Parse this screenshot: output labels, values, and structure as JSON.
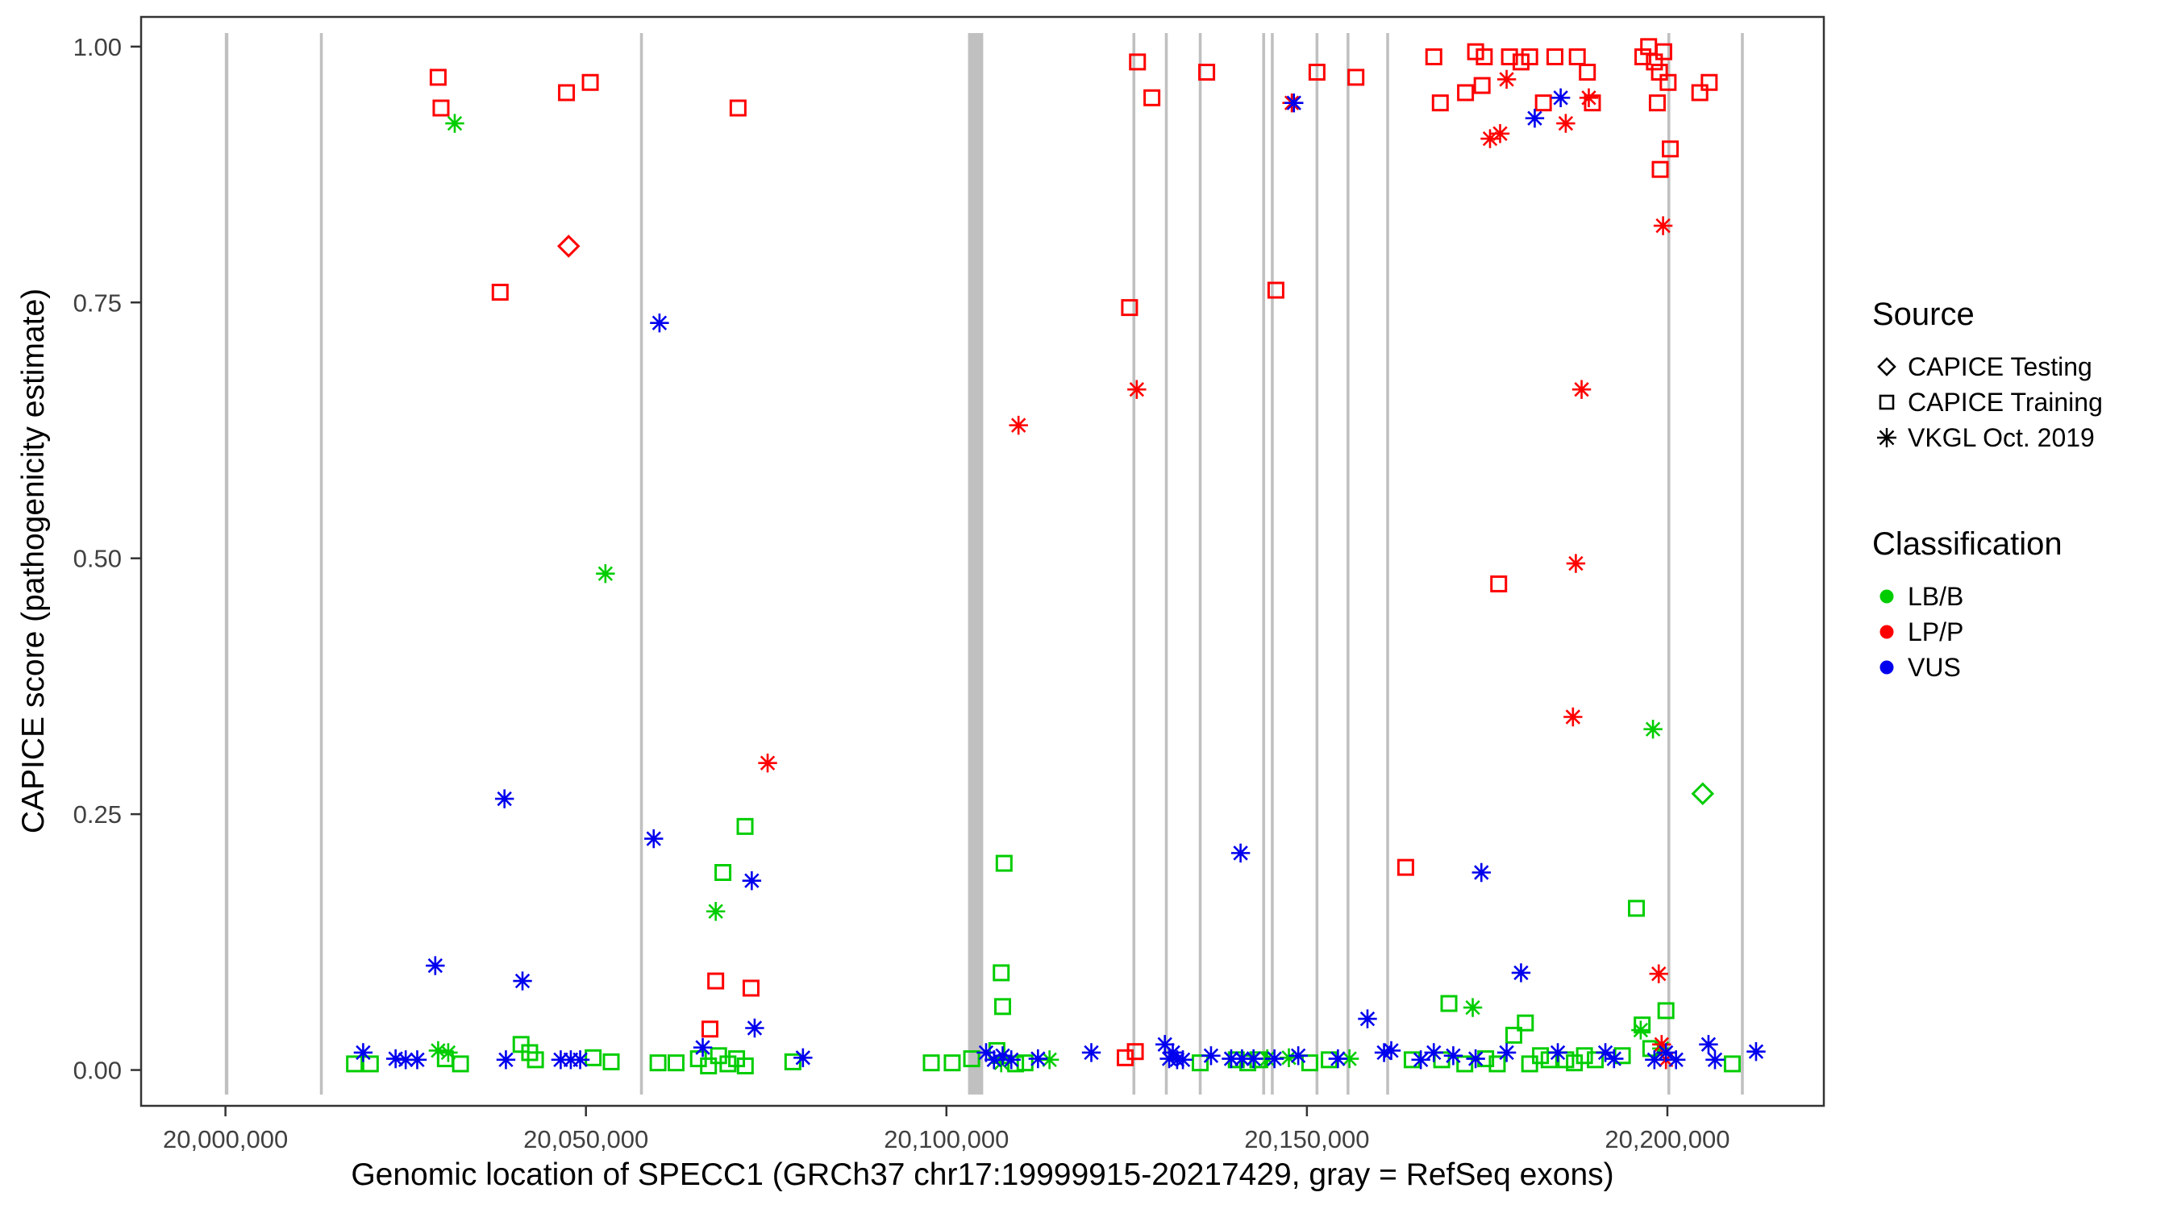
{
  "legend": {
    "source": {
      "title": "Source",
      "items": [
        {
          "label": "CAPICE Testing",
          "shape": "diamond"
        },
        {
          "label": "CAPICE Training",
          "shape": "square"
        },
        {
          "label": "VKGL Oct. 2019",
          "shape": "asterisk"
        }
      ]
    },
    "classification": {
      "title": "Classification",
      "items": [
        {
          "label": "LB/B",
          "color": "#00CD00"
        },
        {
          "label": "LP/P",
          "color": "#FF0000"
        },
        {
          "label": "VUS",
          "color": "#0000EE"
        }
      ]
    }
  },
  "chart_data": {
    "type": "scatter",
    "title": "",
    "xlabel": "Genomic location of SPECC1 (GRCh37 chr17:19999915-20217429, gray = RefSeq exons)",
    "ylabel": "CAPICE score (pathogenicity estimate)",
    "xlim": [
      19988300,
      20221700
    ],
    "ylim": [
      -0.035,
      1.029
    ],
    "x_ticks": {
      "values": [
        20000000,
        20050000,
        20100000,
        20150000,
        20200000
      ],
      "labels": [
        "20,000,000",
        "20,050,000",
        "20,100,000",
        "20,150,000",
        "20,200,000"
      ]
    },
    "y_ticks": {
      "values": [
        0.0,
        0.25,
        0.5,
        0.75,
        1.0
      ],
      "labels": [
        "0.00",
        "0.25",
        "0.50",
        "0.75",
        "1.00"
      ]
    },
    "grid": false,
    "legend_position": "right",
    "exon_color": "#C0C0C0",
    "exons": [
      [
        19999915,
        20000400
      ],
      [
        20013100,
        20013500
      ],
      [
        20057500,
        20057900
      ],
      [
        20103000,
        20105100
      ],
      [
        20125800,
        20126200
      ],
      [
        20130300,
        20130700
      ],
      [
        20135000,
        20135400
      ],
      [
        20143800,
        20144200
      ],
      [
        20145000,
        20145400
      ],
      [
        20151200,
        20151600
      ],
      [
        20155500,
        20155900
      ],
      [
        20161000,
        20161400
      ],
      [
        20200000,
        20200400
      ],
      [
        20210200,
        20210600
      ]
    ],
    "series": [
      {
        "name": "CAPICE Testing / LP/P",
        "source": "CAPICE Testing",
        "classification": "LP/P",
        "shape": "diamond",
        "color": "#FF0000",
        "points": [
          [
            20047600,
            0.805
          ]
        ]
      },
      {
        "name": "CAPICE Testing / LB/B",
        "source": "CAPICE Testing",
        "classification": "LB/B",
        "shape": "diamond",
        "color": "#00CD00",
        "points": [
          [
            20204900,
            0.27
          ]
        ]
      },
      {
        "name": "CAPICE Training / LP/P",
        "source": "CAPICE Training",
        "classification": "LP/P",
        "shape": "square",
        "color": "#FF0000",
        "points": [
          [
            20029500,
            0.97
          ],
          [
            20029900,
            0.94
          ],
          [
            20038100,
            0.76
          ],
          [
            20047300,
            0.955
          ],
          [
            20050600,
            0.965
          ],
          [
            20067200,
            0.04
          ],
          [
            20068000,
            0.087
          ],
          [
            20072900,
            0.08
          ],
          [
            20071100,
            0.94
          ],
          [
            20124800,
            0.012
          ],
          [
            20126200,
            0.018
          ],
          [
            20125400,
            0.745
          ],
          [
            20126500,
            0.985
          ],
          [
            20128500,
            0.95
          ],
          [
            20136100,
            0.975
          ],
          [
            20145700,
            0.762
          ],
          [
            20151400,
            0.975
          ],
          [
            20156800,
            0.97
          ],
          [
            20163700,
            0.198
          ],
          [
            20167600,
            0.99
          ],
          [
            20168500,
            0.945
          ],
          [
            20172000,
            0.955
          ],
          [
            20173400,
            0.995
          ],
          [
            20174600,
            0.99
          ],
          [
            20174300,
            0.962
          ],
          [
            20176600,
            0.475
          ],
          [
            20178100,
            0.99
          ],
          [
            20179700,
            0.985
          ],
          [
            20180900,
            0.99
          ],
          [
            20182800,
            0.945
          ],
          [
            20184400,
            0.99
          ],
          [
            20187500,
            0.99
          ],
          [
            20188900,
            0.975
          ],
          [
            20189600,
            0.945
          ],
          [
            20196600,
            0.99
          ],
          [
            20197400,
            1.0
          ],
          [
            20198200,
            0.985
          ],
          [
            20198900,
            0.975
          ],
          [
            20199500,
            0.995
          ],
          [
            20200100,
            0.965
          ],
          [
            20199000,
            0.88
          ],
          [
            20200400,
            0.9
          ],
          [
            20198600,
            0.945
          ],
          [
            20204500,
            0.955
          ],
          [
            20205800,
            0.965
          ]
        ]
      },
      {
        "name": "CAPICE Training / LB/B",
        "source": "CAPICE Training",
        "classification": "LB/B",
        "shape": "square",
        "color": "#00CD00",
        "points": [
          [
            20017900,
            0.006
          ],
          [
            20020100,
            0.006
          ],
          [
            20030500,
            0.011
          ],
          [
            20032600,
            0.006
          ],
          [
            20041000,
            0.025
          ],
          [
            20042200,
            0.017
          ],
          [
            20043000,
            0.01
          ],
          [
            20051000,
            0.012
          ],
          [
            20053500,
            0.008
          ],
          [
            20060000,
            0.007
          ],
          [
            20062500,
            0.007
          ],
          [
            20065600,
            0.011
          ],
          [
            20067000,
            0.004
          ],
          [
            20068400,
            0.014
          ],
          [
            20069000,
            0.193
          ],
          [
            20069700,
            0.006
          ],
          [
            20070900,
            0.011
          ],
          [
            20072070,
            0.238
          ],
          [
            20072100,
            0.004
          ],
          [
            20078700,
            0.008
          ],
          [
            20097900,
            0.007
          ],
          [
            20100800,
            0.007
          ],
          [
            20103500,
            0.011
          ],
          [
            20107000,
            0.019
          ],
          [
            20107600,
            0.095
          ],
          [
            20107800,
            0.062
          ],
          [
            20108000,
            0.202
          ],
          [
            20109600,
            0.006
          ],
          [
            20110900,
            0.007
          ],
          [
            20135200,
            0.007
          ],
          [
            20140200,
            0.01
          ],
          [
            20141800,
            0.007
          ],
          [
            20143200,
            0.01
          ],
          [
            20150400,
            0.007
          ],
          [
            20153100,
            0.01
          ],
          [
            20164600,
            0.01
          ],
          [
            20168700,
            0.01
          ],
          [
            20169700,
            0.065
          ],
          [
            20171900,
            0.006
          ],
          [
            20174800,
            0.011
          ],
          [
            20176400,
            0.006
          ],
          [
            20178700,
            0.034
          ],
          [
            20180300,
            0.046
          ],
          [
            20180900,
            0.006
          ],
          [
            20182400,
            0.014
          ],
          [
            20183600,
            0.01
          ],
          [
            20185900,
            0.01
          ],
          [
            20187100,
            0.007
          ],
          [
            20188500,
            0.014
          ],
          [
            20190000,
            0.01
          ],
          [
            20193750,
            0.014
          ],
          [
            20195700,
            0.158
          ],
          [
            20196500,
            0.044
          ],
          [
            20197700,
            0.021
          ],
          [
            20199800,
            0.058
          ],
          [
            20209000,
            0.006
          ]
        ]
      },
      {
        "name": "VKGL / LB/B",
        "source": "VKGL Oct. 2019",
        "classification": "LB/B",
        "shape": "asterisk",
        "color": "#00CD00",
        "points": [
          [
            20031800,
            0.925
          ],
          [
            20052700,
            0.485
          ],
          [
            20068000,
            0.155
          ],
          [
            20029500,
            0.019
          ],
          [
            20030900,
            0.017
          ],
          [
            20107600,
            0.007
          ],
          [
            20114300,
            0.01
          ],
          [
            20144500,
            0.011
          ],
          [
            20147500,
            0.012
          ],
          [
            20155900,
            0.011
          ],
          [
            20173000,
            0.061
          ],
          [
            20196300,
            0.039
          ],
          [
            20198000,
            0.333
          ],
          [
            20199200,
            0.021
          ]
        ]
      },
      {
        "name": "VKGL / LP/P",
        "source": "VKGL Oct. 2019",
        "classification": "LP/P",
        "shape": "asterisk",
        "color": "#FF0000",
        "points": [
          [
            20075200,
            0.3
          ],
          [
            20110000,
            0.63
          ],
          [
            20126400,
            0.665
          ],
          [
            20147900,
            0.945
          ],
          [
            20175400,
            0.91
          ],
          [
            20176800,
            0.915
          ],
          [
            20177700,
            0.968
          ],
          [
            20185900,
            0.925
          ],
          [
            20189100,
            0.95
          ],
          [
            20186900,
            0.345
          ],
          [
            20187300,
            0.495
          ],
          [
            20188100,
            0.665
          ],
          [
            20199400,
            0.825
          ],
          [
            20198800,
            0.094
          ],
          [
            20199200,
            0.025
          ],
          [
            20199800,
            0.01
          ]
        ]
      },
      {
        "name": "VKGL / VUS",
        "source": "VKGL Oct. 2019",
        "classification": "VUS",
        "shape": "asterisk",
        "color": "#0000EE",
        "points": [
          [
            20019100,
            0.017
          ],
          [
            20023600,
            0.011
          ],
          [
            20025000,
            0.01
          ],
          [
            20026600,
            0.01
          ],
          [
            20029100,
            0.102
          ],
          [
            20038700,
            0.265
          ],
          [
            20038900,
            0.01
          ],
          [
            20041200,
            0.087
          ],
          [
            20046500,
            0.01
          ],
          [
            20047900,
            0.01
          ],
          [
            20049200,
            0.01
          ],
          [
            20059400,
            0.226
          ],
          [
            20060200,
            0.73
          ],
          [
            20066200,
            0.022
          ],
          [
            20073000,
            0.185
          ],
          [
            20073400,
            0.041
          ],
          [
            20080100,
            0.012
          ],
          [
            20105500,
            0.017
          ],
          [
            20106600,
            0.01
          ],
          [
            20107800,
            0.014
          ],
          [
            20109000,
            0.01
          ],
          [
            20112700,
            0.011
          ],
          [
            20120100,
            0.017
          ],
          [
            20130300,
            0.025
          ],
          [
            20130900,
            0.011
          ],
          [
            20131400,
            0.017
          ],
          [
            20132000,
            0.01
          ],
          [
            20132800,
            0.01
          ],
          [
            20136700,
            0.014
          ],
          [
            20139500,
            0.011
          ],
          [
            20140800,
            0.212
          ],
          [
            20141000,
            0.011
          ],
          [
            20142600,
            0.011
          ],
          [
            20145500,
            0.011
          ],
          [
            20148200,
            0.945
          ],
          [
            20148800,
            0.014
          ],
          [
            20154300,
            0.011
          ],
          [
            20158400,
            0.05
          ],
          [
            20160700,
            0.017
          ],
          [
            20161700,
            0.019
          ],
          [
            20165800,
            0.01
          ],
          [
            20167600,
            0.017
          ],
          [
            20170300,
            0.014
          ],
          [
            20173400,
            0.011
          ],
          [
            20174200,
            0.193
          ],
          [
            20177700,
            0.017
          ],
          [
            20179700,
            0.095
          ],
          [
            20181600,
            0.93
          ],
          [
            20185200,
            0.95
          ],
          [
            20184800,
            0.017
          ],
          [
            20191400,
            0.017
          ],
          [
            20192600,
            0.011
          ],
          [
            20198200,
            0.01
          ],
          [
            20199800,
            0.017
          ],
          [
            20201200,
            0.01
          ],
          [
            20205700,
            0.025
          ],
          [
            20206600,
            0.01
          ],
          [
            20212300,
            0.018
          ]
        ]
      }
    ]
  }
}
